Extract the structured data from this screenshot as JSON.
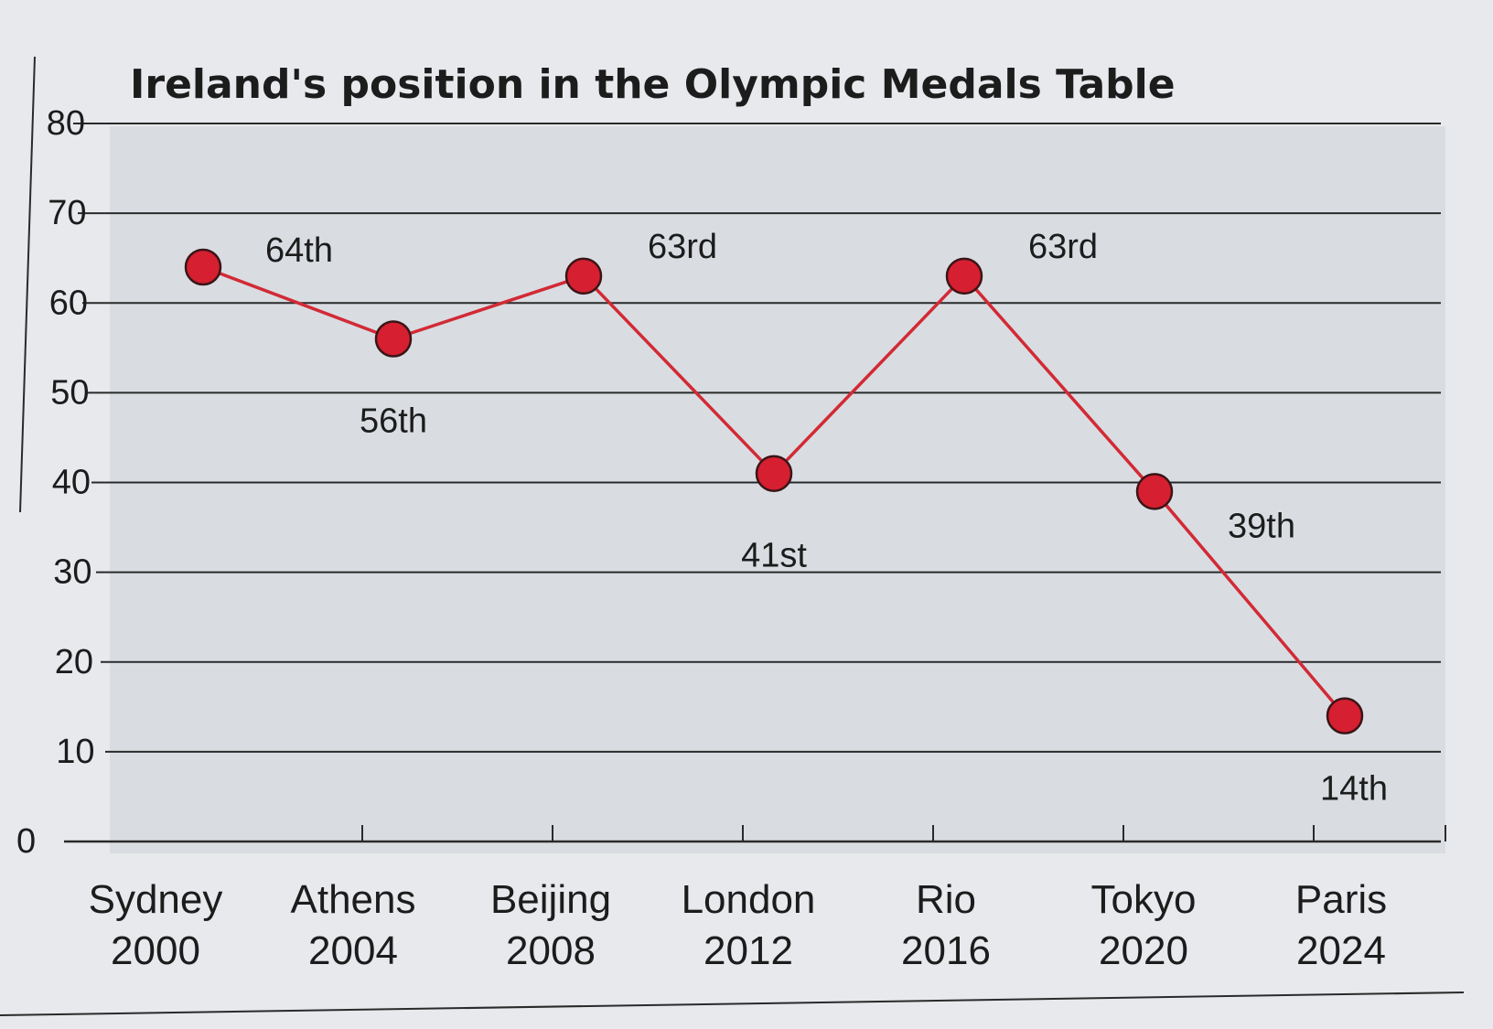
{
  "chart_data": {
    "type": "line",
    "title": "Ireland's position in the Olympic Medals Table",
    "xlabel": "",
    "ylabel": "",
    "ylim": [
      0,
      80
    ],
    "yticks": [
      "0",
      "10",
      "20",
      "30",
      "40",
      "50",
      "60",
      "70",
      "80"
    ],
    "categories": [
      {
        "name": "Sydney",
        "year": "2000"
      },
      {
        "name": "Athens",
        "year": "2004"
      },
      {
        "name": "Beijing",
        "year": "2008"
      },
      {
        "name": "London",
        "year": "2012"
      },
      {
        "name": "Rio",
        "year": "2016"
      },
      {
        "name": "Tokyo",
        "year": "2020"
      },
      {
        "name": "Paris",
        "year": "2024"
      }
    ],
    "series": [
      {
        "values": [
          64,
          56,
          63,
          41,
          63,
          39,
          14
        ],
        "labels": [
          "64th",
          "56th",
          "63rd",
          "41st",
          "63rd",
          "39th",
          "14th"
        ]
      }
    ],
    "grid": true,
    "legend": "none",
    "colors": {
      "line": "#d22a35",
      "marker": "#d61f30",
      "plot_bg": "#d9dde2",
      "grid": "#2a2a2a",
      "text": "#1c1c1c"
    }
  }
}
